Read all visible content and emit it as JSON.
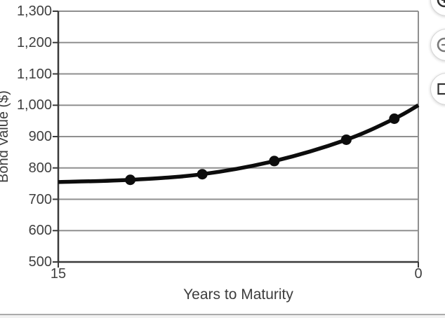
{
  "viewer": {
    "controls": [
      {
        "id": "zoom-in",
        "icon": "circle-plus-icon"
      },
      {
        "id": "zoom-out",
        "icon": "circle-minus-icon"
      },
      {
        "id": "fit-view",
        "icon": "square-icon"
      }
    ]
  },
  "chart_data": {
    "type": "line",
    "title": "",
    "xlabel": "Years to Maturity",
    "ylabel": "Bond Value ($)",
    "xlim": [
      15,
      0
    ],
    "ylim": [
      500,
      1300
    ],
    "x_axis_reversed": true,
    "x_tick_values": [
      15,
      0
    ],
    "x_tick_labels": [
      "15",
      "0"
    ],
    "y_tick_values": [
      500,
      600,
      700,
      800,
      900,
      1000,
      1100,
      1200,
      1300
    ],
    "y_tick_labels": [
      "500",
      "600",
      "700",
      "800",
      "900",
      "1,000",
      "1,100",
      "1,200",
      "1,300"
    ],
    "grid": "horizontal",
    "legend": "none",
    "series": [
      {
        "name": "Bond value",
        "x": [
          15,
          12,
          9,
          6,
          3,
          1,
          0
        ],
        "y": [
          755,
          762,
          780,
          822,
          890,
          957,
          1000
        ],
        "markers": [
          {
            "x": 12,
            "y": 762
          },
          {
            "x": 9,
            "y": 780
          },
          {
            "x": 6,
            "y": 822
          },
          {
            "x": 3,
            "y": 890
          },
          {
            "x": 1,
            "y": 957
          }
        ]
      }
    ],
    "colors": {
      "line": "#0d0d0d",
      "axis": "#3a3a3a",
      "grid": "#8f8f8f",
      "text": "#3f3f3f"
    }
  }
}
